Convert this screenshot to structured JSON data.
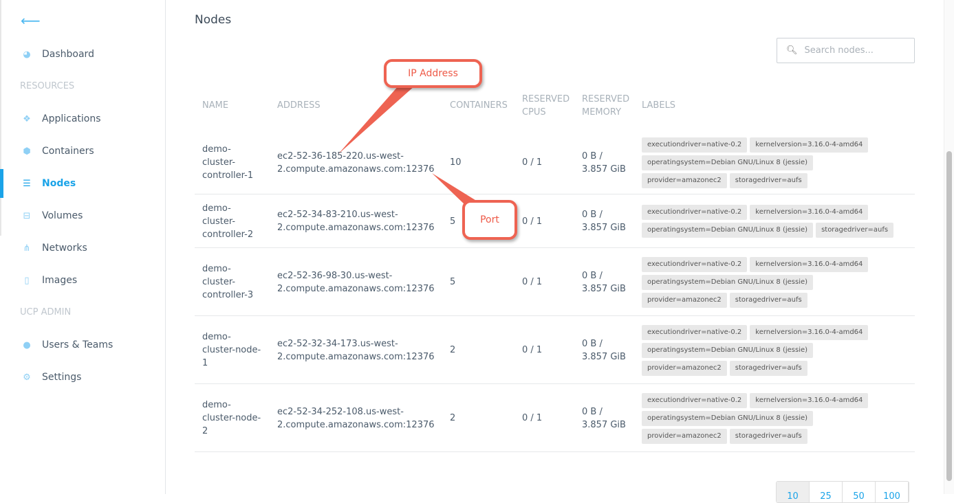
{
  "sidebar": {
    "back_icon": "arrow-left-icon",
    "dashboard": "Dashboard",
    "resources_heading": "RESOURCES",
    "items": [
      {
        "label": "Applications",
        "icon": "cubes-icon"
      },
      {
        "label": "Containers",
        "icon": "cube-icon"
      },
      {
        "label": "Nodes",
        "icon": "server-icon",
        "active": true
      },
      {
        "label": "Volumes",
        "icon": "hdd-icon"
      },
      {
        "label": "Networks",
        "icon": "sitemap-icon"
      },
      {
        "label": "Images",
        "icon": "file-icon"
      }
    ],
    "admin_heading": "UCP ADMIN",
    "admin_items": [
      {
        "label": "Users & Teams",
        "icon": "user-icon"
      },
      {
        "label": "Settings",
        "icon": "cogs-icon"
      }
    ],
    "accent": "#1aa3e8"
  },
  "main": {
    "title": "Nodes",
    "search_placeholder": "Search nodes...",
    "columns": {
      "name": "NAME",
      "address": "ADDRESS",
      "containers": "CONTAINERS",
      "cpus1": "RESERVED",
      "cpus2": "CPUS",
      "mem1": "RESERVED",
      "mem2": "MEMORY",
      "labels": "LABELS"
    },
    "rows": [
      {
        "name": [
          "demo-",
          "cluster-",
          "controller-1"
        ],
        "address": [
          "ec2-52-36-185-220.us-west-",
          "2.compute.amazonaws.com:12376"
        ],
        "containers": "10",
        "cpus": "0 / 1",
        "mem": [
          "0 B /",
          "3.857 GiB"
        ],
        "labels": [
          "executiondriver=native-0.2",
          "kernelversion=3.16.0-4-amd64",
          "operatingsystem=Debian GNU/Linux 8 (jessie)",
          "provider=amazonec2",
          "storagedriver=aufs"
        ]
      },
      {
        "name": [
          "demo-",
          "cluster-",
          "controller-2"
        ],
        "address": [
          "ec2-52-34-83-210.us-west-",
          "2.compute.amazonaws.com:12376"
        ],
        "containers": "5",
        "cpus": "0 / 1",
        "mem": [
          "0 B /",
          "3.857 GiB"
        ],
        "labels": [
          "executiondriver=native-0.2",
          "kernelversion=3.16.0-4-amd64",
          "operatingsystem=Debian GNU/Linux 8 (jessie)",
          "storagedriver=aufs"
        ]
      },
      {
        "name": [
          "demo-",
          "cluster-",
          "controller-3"
        ],
        "address": [
          "ec2-52-36-98-30.us-west-",
          "2.compute.amazonaws.com:12376"
        ],
        "containers": "5",
        "cpus": "0 / 1",
        "mem": [
          "0 B /",
          "3.857 GiB"
        ],
        "labels": [
          "executiondriver=native-0.2",
          "kernelversion=3.16.0-4-amd64",
          "operatingsystem=Debian GNU/Linux 8 (jessie)",
          "provider=amazonec2",
          "storagedriver=aufs"
        ]
      },
      {
        "name": [
          "demo-",
          "cluster-node-",
          "1"
        ],
        "address": [
          "ec2-52-32-34-173.us-west-",
          "2.compute.amazonaws.com:12376"
        ],
        "containers": "2",
        "cpus": "0 / 1",
        "mem": [
          "0 B /",
          "3.857 GiB"
        ],
        "labels": [
          "executiondriver=native-0.2",
          "kernelversion=3.16.0-4-amd64",
          "operatingsystem=Debian GNU/Linux 8 (jessie)",
          "provider=amazonec2",
          "storagedriver=aufs"
        ]
      },
      {
        "name": [
          "demo-",
          "cluster-node-",
          "2"
        ],
        "address": [
          "ec2-52-34-252-108.us-west-",
          "2.compute.amazonaws.com:12376"
        ],
        "containers": "2",
        "cpus": "0 / 1",
        "mem": [
          "0 B /",
          "3.857 GiB"
        ],
        "labels": [
          "executiondriver=native-0.2",
          "kernelversion=3.16.0-4-amd64",
          "operatingsystem=Debian GNU/Linux 8 (jessie)",
          "provider=amazonec2",
          "storagedriver=aufs"
        ]
      }
    ],
    "page_sizes": [
      "10",
      "25",
      "50",
      "100"
    ]
  },
  "annotations": {
    "ip": "IP Address",
    "port": "Port",
    "color": "#ee6352"
  }
}
